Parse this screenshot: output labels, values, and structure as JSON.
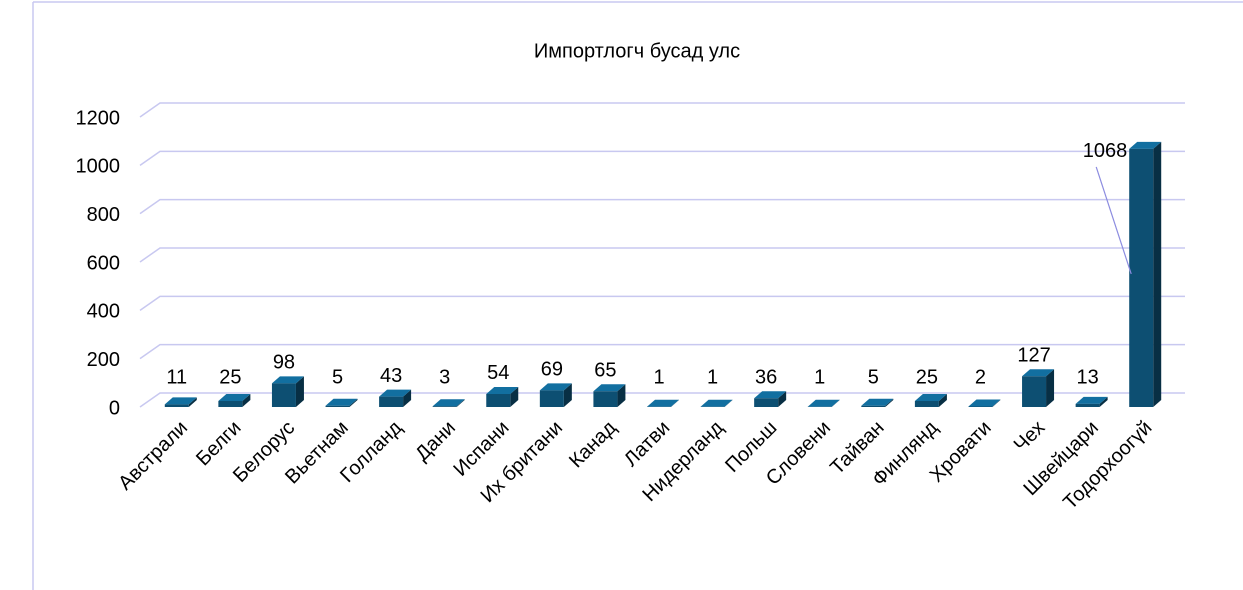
{
  "chart_data": {
    "type": "bar",
    "title": "Импортлогч бусад улс",
    "categories": [
      "Австрали",
      "Белги",
      "Белорус",
      "Вьетнам",
      "Голланд",
      "Дани",
      "Испани",
      "Их британи",
      "Канад",
      "Латви",
      "Нидерланд",
      "Польш",
      "Словени",
      "Тайван",
      "Финлянд",
      "Хровати",
      "Чех",
      "Швейцари",
      "Тодорхоогүй"
    ],
    "values": [
      11,
      25,
      98,
      5,
      43,
      3,
      54,
      69,
      65,
      1,
      1,
      36,
      1,
      5,
      25,
      2,
      127,
      13,
      1068
    ],
    "color": "#0d4f72",
    "ylim": [
      0,
      1200
    ],
    "yticks": [
      0,
      200,
      400,
      600,
      800,
      1000,
      1200
    ],
    "grid": true
  }
}
